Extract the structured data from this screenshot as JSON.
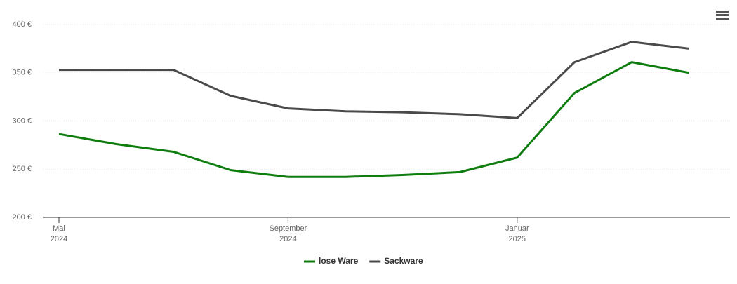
{
  "chart_data": {
    "type": "line",
    "x": [
      "2024-05",
      "2024-06",
      "2024-07",
      "2024-08",
      "2024-09",
      "2024-10",
      "2024-11",
      "2024-12",
      "2025-01",
      "2025-02",
      "2025-03",
      "2025-04"
    ],
    "series": [
      {
        "name": "lose Ware",
        "color": "#0e7d0e",
        "values": [
          286.5,
          276,
          268,
          249,
          242,
          242,
          244,
          247,
          262,
          329,
          361,
          350
        ]
      },
      {
        "name": "Sackware",
        "color": "#4a4a4a",
        "values": [
          353,
          353,
          353,
          326,
          313,
          310,
          309,
          307,
          303,
          361,
          382,
          375
        ]
      }
    ],
    "ylim": [
      200,
      400
    ],
    "yticks": [
      {
        "value": 200,
        "label": "200 €"
      },
      {
        "value": 250,
        "label": "250 €"
      },
      {
        "value": 300,
        "label": "300 €"
      },
      {
        "value": 350,
        "label": "350 €"
      },
      {
        "value": 400,
        "label": "400 €"
      }
    ],
    "xticks": [
      {
        "value": "2024-05",
        "label": "Mai",
        "year": "2024"
      },
      {
        "value": "2024-09",
        "label": "September",
        "year": "2024"
      },
      {
        "value": "2025-01",
        "label": "Januar",
        "year": "2025"
      }
    ],
    "grid": true,
    "legend": "bottom"
  }
}
